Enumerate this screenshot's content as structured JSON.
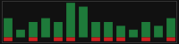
{
  "chart_data": {
    "type": "bar",
    "categories": [
      null,
      null,
      null,
      null,
      null,
      null,
      null,
      null,
      null,
      null,
      null,
      null,
      null,
      null
    ],
    "series": [
      {
        "color": "#1e7a3a",
        "values": [
          5,
          2,
          4,
          5,
          4,
          9,
          8,
          4,
          4,
          3,
          2,
          4,
          3,
          5
        ]
      },
      {
        "color": "#cc2020",
        "values": [
          -1,
          0,
          -1,
          0,
          -1,
          -1,
          0,
          -1,
          -1,
          -1,
          0,
          -1,
          0,
          -1
        ]
      }
    ],
    "stacked": true,
    "ylim": [
      -1.5,
      9.5
    ],
    "tick_labels": false
  }
}
